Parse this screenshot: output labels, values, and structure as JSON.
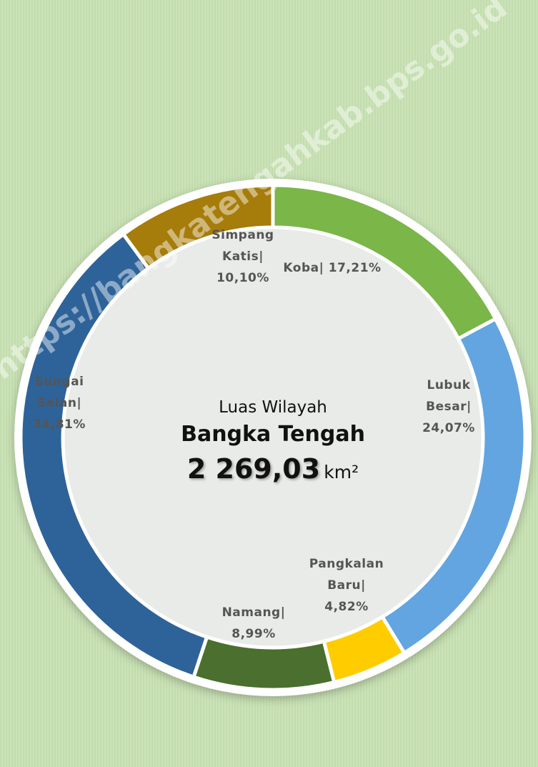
{
  "chart_data": {
    "type": "donut",
    "center_subtitle": "Luas Wilayah",
    "center_title": "Bangka Tengah",
    "center_value": "2 269,03",
    "center_unit": "km²",
    "watermark": "https://bangkatengahkab.bps.go.id",
    "categories": [
      "Koba|",
      "Lubuk Besar|",
      "Pangkalan Baru|",
      "Namang|",
      "Sungai Selan|",
      "Simpang Katis|"
    ],
    "values": [
      17.21,
      24.07,
      4.82,
      8.99,
      34.81,
      10.1
    ],
    "value_labels": [
      "17,21%",
      "24,07%",
      "4,82%",
      "8,99%",
      "34,81%",
      "10,10%"
    ],
    "colors": [
      "#7ab648",
      "#62a5e0",
      "#ffcc00",
      "#4a6f2e",
      "#2e6399",
      "#a67c0a"
    ]
  }
}
